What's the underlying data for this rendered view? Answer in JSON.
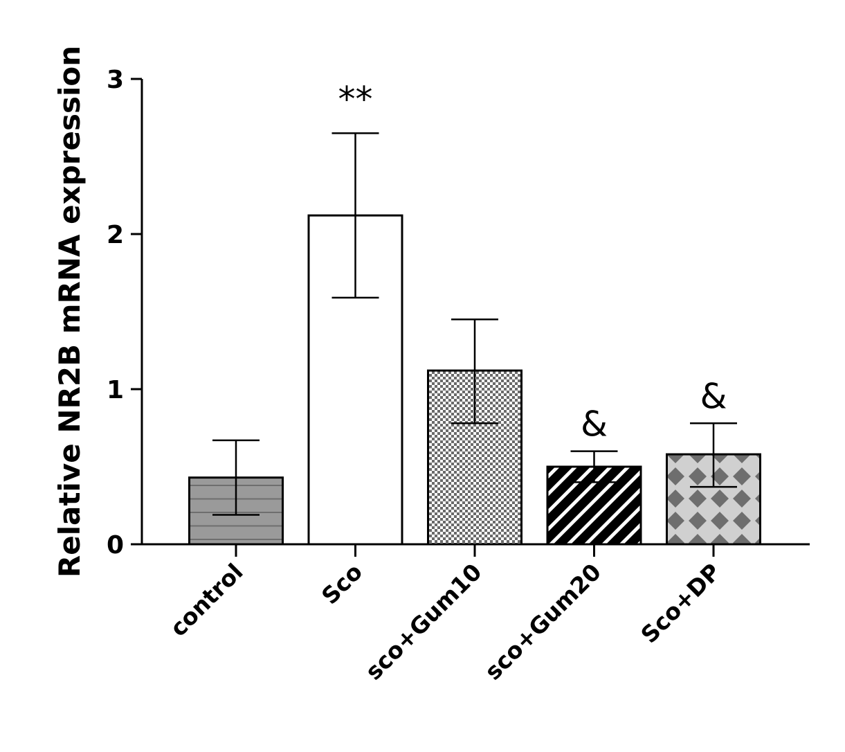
{
  "chart_data": {
    "type": "bar",
    "title": "",
    "xlabel": "",
    "ylabel": "Relative NR2B mRNA expression",
    "ylim": [
      0,
      3
    ],
    "yticks": [
      0,
      1,
      2,
      3
    ],
    "categories": [
      "control",
      "Sco",
      "sco+Gum10",
      "sco+Gum20",
      "Sco+DP"
    ],
    "values": [
      0.43,
      2.12,
      1.12,
      0.5,
      0.58
    ],
    "error_low": [
      0.19,
      1.59,
      0.78,
      0.4,
      0.37
    ],
    "error_high": [
      0.67,
      2.65,
      1.45,
      0.6,
      0.78
    ],
    "annotations": [
      "",
      "**",
      "",
      "&",
      "&"
    ],
    "bar_patterns": [
      "horizontal-lines-gray",
      "solid-white",
      "fine-checker",
      "diagonal-stripes-black",
      "diamond-grid-gray"
    ],
    "colors": {
      "control": "#9a9a9a",
      "control_lines": "#6e6e6e",
      "sco": "#ffffff",
      "checker_dark": "#6a6a6a",
      "checker_light": "#ffffff",
      "stripe_dark": "#000000",
      "stripe_light": "#ffffff",
      "diamond_light": "#d0d0d0",
      "diamond_dark": "#6e6e6e"
    },
    "grid": false,
    "legend": "none"
  }
}
